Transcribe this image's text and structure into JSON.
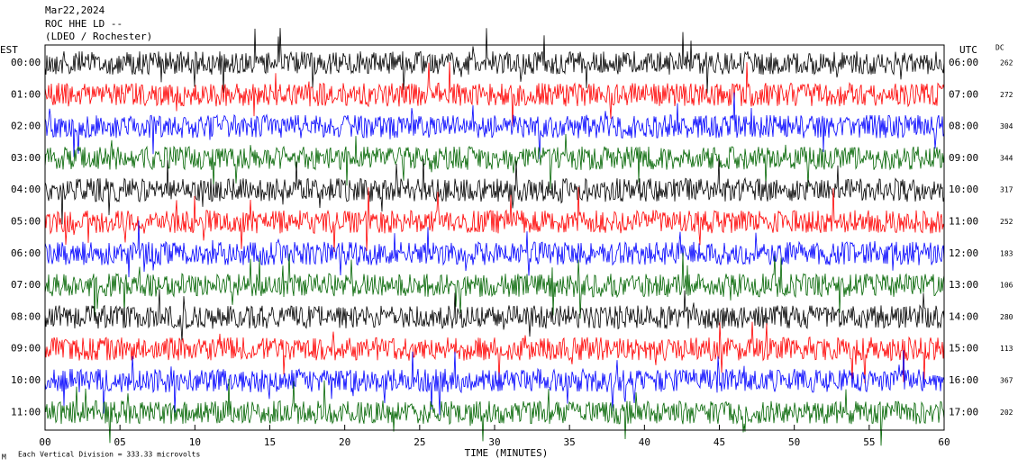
{
  "chart_data": {
    "type": "helicorder",
    "header": [
      "Mar22,2024",
      "ROC HHE LD --",
      "(LDEO / Rochester)"
    ],
    "left_axis_label": "EST",
    "right_axis_label": "UTC",
    "dc_label": "DC",
    "rows": [
      {
        "est": "00:00",
        "utc": "06:00",
        "dc": 262,
        "color": "#000000"
      },
      {
        "est": "01:00",
        "utc": "07:00",
        "dc": 272,
        "color": "#ff0000"
      },
      {
        "est": "02:00",
        "utc": "08:00",
        "dc": 304,
        "color": "#0000ff"
      },
      {
        "est": "03:00",
        "utc": "09:00",
        "dc": 344,
        "color": "#006400"
      },
      {
        "est": "04:00",
        "utc": "10:00",
        "dc": 317,
        "color": "#000000"
      },
      {
        "est": "05:00",
        "utc": "11:00",
        "dc": 252,
        "color": "#ff0000"
      },
      {
        "est": "06:00",
        "utc": "12:00",
        "dc": 183,
        "color": "#0000ff"
      },
      {
        "est": "07:00",
        "utc": "13:00",
        "dc": 106,
        "color": "#006400"
      },
      {
        "est": "08:00",
        "utc": "14:00",
        "dc": 280,
        "color": "#000000"
      },
      {
        "est": "09:00",
        "utc": "15:00",
        "dc": 113,
        "color": "#ff0000"
      },
      {
        "est": "10:00",
        "utc": "16:00",
        "dc": 367,
        "color": "#0000ff"
      },
      {
        "est": "11:00",
        "utc": "17:00",
        "dc": 202,
        "color": "#006400"
      }
    ],
    "xlim": [
      0,
      60
    ],
    "xticks": [
      {
        "value": 0,
        "label": "00"
      },
      {
        "value": 5,
        "label": "05"
      },
      10,
      15,
      20,
      25,
      30,
      35,
      40,
      45,
      50,
      55,
      60
    ],
    "xlabel": "TIME (MINUTES)",
    "footnote_mark": "M",
    "footnote": "Each Vertical Division =  333.33 microvolts"
  }
}
